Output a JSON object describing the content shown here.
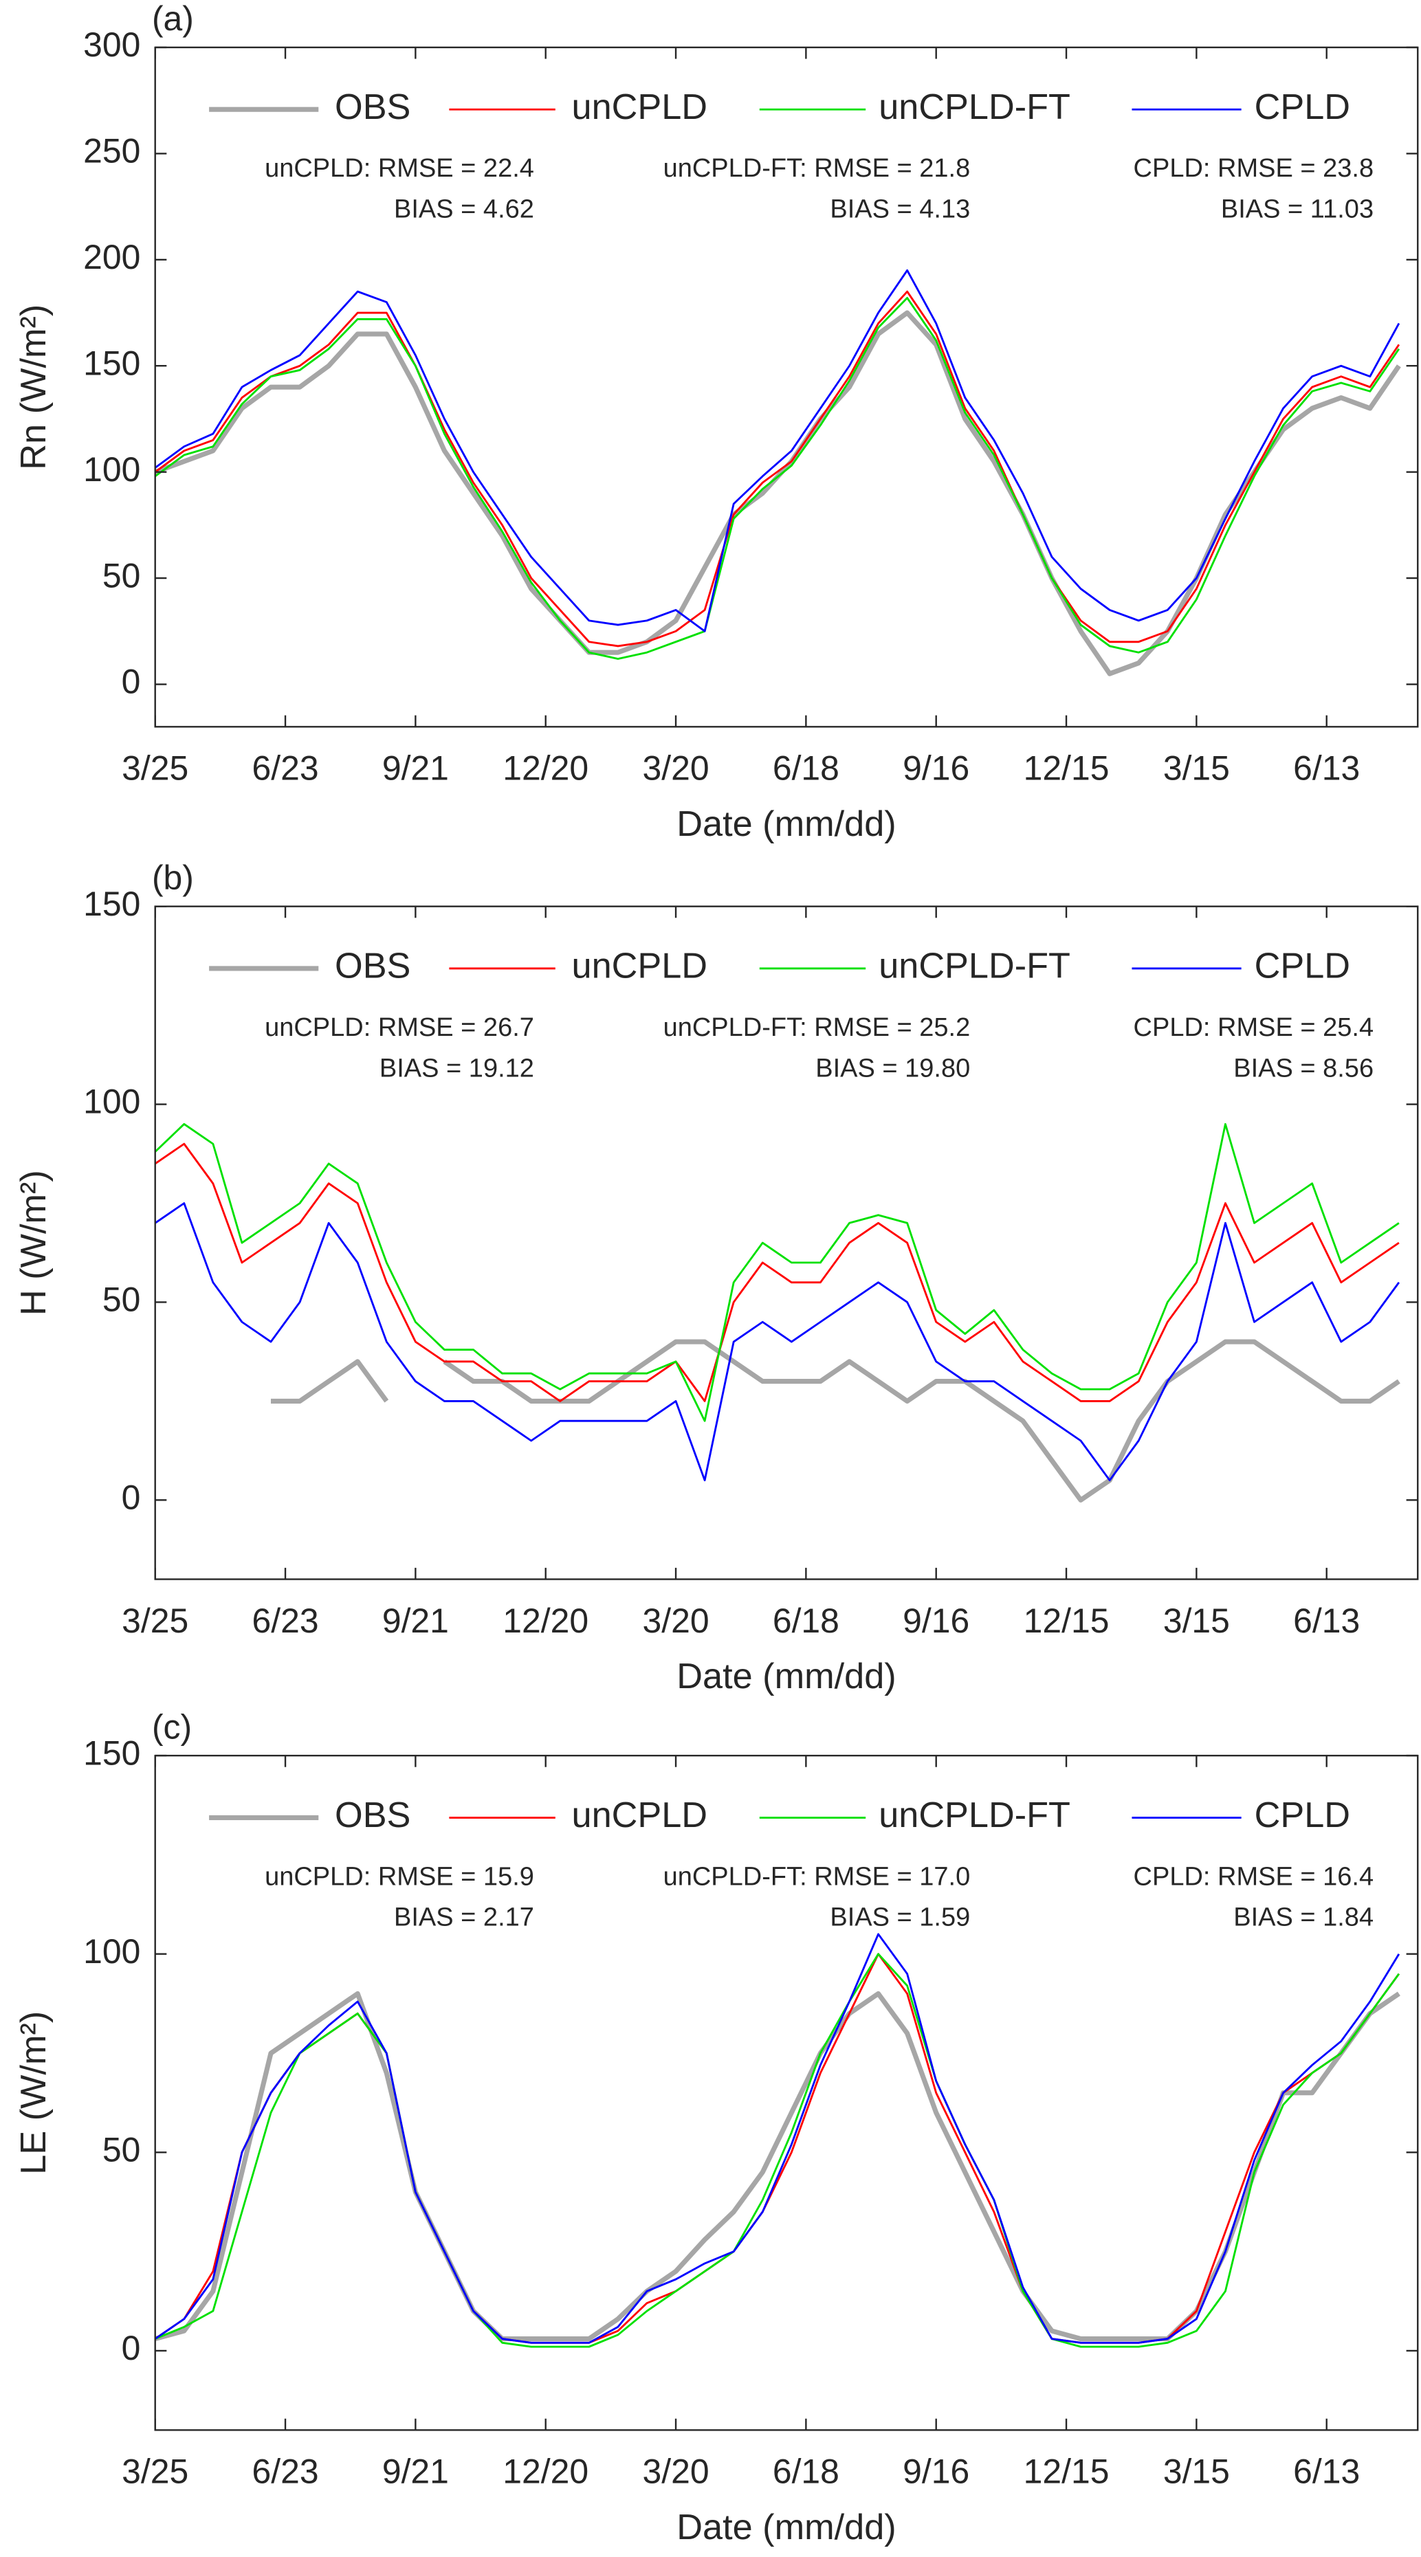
{
  "chart_data": [
    {
      "type": "line",
      "label": "(a)",
      "xlabel": "Date (mm/dd)",
      "ylabel": "Rn (W/m²)",
      "legend": "top",
      "x": [
        0,
        20,
        40,
        60,
        80,
        100,
        120,
        140,
        160,
        180,
        200,
        220,
        240,
        260,
        280,
        300,
        320,
        340,
        360,
        380,
        400,
        420,
        440,
        460,
        480,
        500,
        520,
        540,
        560,
        580,
        600,
        620,
        640,
        660,
        680,
        700,
        720,
        740,
        760,
        780,
        800,
        820,
        840,
        860
      ],
      "xlim": [
        0,
        873
      ],
      "ylim": [
        -20,
        300
      ],
      "xticks": [
        {
          "value": 0,
          "label": "3/25"
        },
        {
          "value": 90,
          "label": "6/23"
        },
        {
          "value": 180,
          "label": "9/21"
        },
        {
          "value": 270,
          "label": "12/20"
        },
        {
          "value": 360,
          "label": "3/20"
        },
        {
          "value": 450,
          "label": "6/18"
        },
        {
          "value": 540,
          "label": "9/16"
        },
        {
          "value": 630,
          "label": "12/15"
        },
        {
          "value": 720,
          "label": "3/15"
        },
        {
          "value": 810,
          "label": "6/13"
        }
      ],
      "yticks": [
        0,
        50,
        100,
        150,
        200,
        250,
        300
      ],
      "stats": [
        [
          "unCPLD: RMSE = 22.4",
          "BIAS = 4.62"
        ],
        [
          "unCPLD-FT: RMSE = 21.8",
          "BIAS = 4.13"
        ],
        [
          "CPLD: RMSE = 23.8",
          "BIAS = 11.03"
        ]
      ],
      "series": [
        {
          "name": "OBS",
          "color": "#a6a6a6",
          "width": 3,
          "values": [
            100,
            105,
            110,
            130,
            140,
            140,
            150,
            165,
            165,
            140,
            110,
            90,
            70,
            45,
            30,
            15,
            15,
            20,
            30,
            55,
            80,
            90,
            105,
            125,
            140,
            165,
            175,
            160,
            125,
            105,
            80,
            50,
            25,
            5,
            10,
            25,
            50,
            80,
            100,
            120,
            130,
            135,
            130,
            150
          ]
        },
        {
          "name": "unCPLD",
          "color": "#ff0000",
          "width": 1.2,
          "values": [
            100,
            110,
            115,
            135,
            145,
            150,
            160,
            175,
            175,
            150,
            120,
            95,
            75,
            50,
            35,
            20,
            18,
            20,
            25,
            35,
            80,
            95,
            105,
            125,
            145,
            170,
            185,
            165,
            130,
            110,
            80,
            50,
            30,
            20,
            20,
            25,
            45,
            75,
            100,
            125,
            140,
            145,
            140,
            160
          ]
        },
        {
          "name": "unCPLD-FT",
          "color": "#00e000",
          "width": 1.2,
          "values": [
            98,
            108,
            112,
            132,
            145,
            148,
            158,
            172,
            172,
            150,
            118,
            93,
            72,
            48,
            30,
            15,
            12,
            15,
            20,
            25,
            78,
            92,
            103,
            122,
            143,
            168,
            182,
            162,
            128,
            108,
            80,
            50,
            28,
            18,
            15,
            20,
            40,
            70,
            98,
            122,
            138,
            142,
            138,
            158
          ]
        },
        {
          "name": "CPLD",
          "color": "#0000ff",
          "width": 1.2,
          "values": [
            102,
            112,
            118,
            140,
            148,
            155,
            170,
            185,
            180,
            155,
            125,
            100,
            80,
            60,
            45,
            30,
            28,
            30,
            35,
            25,
            85,
            98,
            110,
            130,
            150,
            175,
            195,
            170,
            135,
            115,
            90,
            60,
            45,
            35,
            30,
            35,
            50,
            78,
            105,
            130,
            145,
            150,
            145,
            170
          ]
        }
      ]
    },
    {
      "type": "line",
      "label": "(b)",
      "xlabel": "Date (mm/dd)",
      "ylabel": "H (W/m²)",
      "legend": "top",
      "x": [
        0,
        20,
        40,
        60,
        80,
        100,
        120,
        140,
        160,
        180,
        200,
        220,
        240,
        260,
        280,
        300,
        320,
        340,
        360,
        380,
        400,
        420,
        440,
        460,
        480,
        500,
        520,
        540,
        560,
        580,
        600,
        620,
        640,
        660,
        680,
        700,
        720,
        740,
        760,
        780,
        800,
        820,
        840,
        860
      ],
      "xlim": [
        0,
        873
      ],
      "ylim": [
        -20,
        150
      ],
      "xticks": [
        {
          "value": 0,
          "label": "3/25"
        },
        {
          "value": 90,
          "label": "6/23"
        },
        {
          "value": 180,
          "label": "9/21"
        },
        {
          "value": 270,
          "label": "12/20"
        },
        {
          "value": 360,
          "label": "3/20"
        },
        {
          "value": 450,
          "label": "6/18"
        },
        {
          "value": 540,
          "label": "9/16"
        },
        {
          "value": 630,
          "label": "12/15"
        },
        {
          "value": 720,
          "label": "3/15"
        },
        {
          "value": 810,
          "label": "6/13"
        }
      ],
      "yticks": [
        0,
        50,
        100,
        150
      ],
      "stats": [
        [
          "unCPLD: RMSE = 26.7",
          "BIAS = 19.12"
        ],
        [
          "unCPLD-FT: RMSE = 25.2",
          "BIAS = 19.80"
        ],
        [
          "CPLD: RMSE = 25.4",
          "BIAS = 8.56"
        ]
      ],
      "series": [
        {
          "name": "OBS",
          "color": "#a6a6a6",
          "width": 3,
          "values": [
            null,
            null,
            null,
            null,
            25,
            25,
            30,
            35,
            25,
            null,
            35,
            30,
            30,
            25,
            25,
            25,
            30,
            35,
            40,
            40,
            35,
            30,
            30,
            30,
            35,
            30,
            25,
            30,
            30,
            25,
            20,
            10,
            0,
            5,
            20,
            30,
            35,
            40,
            40,
            35,
            30,
            25,
            25,
            30
          ]
        },
        {
          "name": "unCPLD",
          "color": "#ff0000",
          "width": 1.2,
          "values": [
            85,
            90,
            80,
            60,
            65,
            70,
            80,
            75,
            55,
            40,
            35,
            35,
            30,
            30,
            25,
            30,
            30,
            30,
            35,
            25,
            50,
            60,
            55,
            55,
            65,
            70,
            65,
            45,
            40,
            45,
            35,
            30,
            25,
            25,
            30,
            45,
            55,
            75,
            60,
            65,
            70,
            55,
            60,
            65
          ]
        },
        {
          "name": "unCPLD-FT",
          "color": "#00e000",
          "width": 1.2,
          "values": [
            88,
            95,
            90,
            65,
            70,
            75,
            85,
            80,
            60,
            45,
            38,
            38,
            32,
            32,
            28,
            32,
            32,
            32,
            35,
            20,
            55,
            65,
            60,
            60,
            70,
            72,
            70,
            48,
            42,
            48,
            38,
            32,
            28,
            28,
            32,
            50,
            60,
            95,
            70,
            75,
            80,
            60,
            65,
            70
          ]
        },
        {
          "name": "CPLD",
          "color": "#0000ff",
          "width": 1.2,
          "values": [
            70,
            75,
            55,
            45,
            40,
            50,
            70,
            60,
            40,
            30,
            25,
            25,
            20,
            15,
            20,
            20,
            20,
            20,
            25,
            5,
            40,
            45,
            40,
            45,
            50,
            55,
            50,
            35,
            30,
            30,
            25,
            20,
            15,
            5,
            15,
            30,
            40,
            70,
            45,
            50,
            55,
            40,
            45,
            55
          ]
        }
      ]
    },
    {
      "type": "line",
      "label": "(c)",
      "xlabel": "Date (mm/dd)",
      "ylabel": "LE (W/m²)",
      "legend": "top",
      "x": [
        0,
        20,
        40,
        60,
        80,
        100,
        120,
        140,
        160,
        180,
        200,
        220,
        240,
        260,
        280,
        300,
        320,
        340,
        360,
        380,
        400,
        420,
        440,
        460,
        480,
        500,
        520,
        540,
        560,
        580,
        600,
        620,
        640,
        660,
        680,
        700,
        720,
        740,
        760,
        780,
        800,
        820,
        840,
        860
      ],
      "xlim": [
        0,
        873
      ],
      "ylim": [
        -20,
        150
      ],
      "xticks": [
        {
          "value": 0,
          "label": "3/25"
        },
        {
          "value": 90,
          "label": "6/23"
        },
        {
          "value": 180,
          "label": "9/21"
        },
        {
          "value": 270,
          "label": "12/20"
        },
        {
          "value": 360,
          "label": "3/20"
        },
        {
          "value": 450,
          "label": "6/18"
        },
        {
          "value": 540,
          "label": "9/16"
        },
        {
          "value": 630,
          "label": "12/15"
        },
        {
          "value": 720,
          "label": "3/15"
        },
        {
          "value": 810,
          "label": "6/13"
        }
      ],
      "yticks": [
        0,
        50,
        100,
        150
      ],
      "stats": [
        [
          "unCPLD: RMSE = 15.9",
          "BIAS = 2.17"
        ],
        [
          "unCPLD-FT: RMSE = 17.0",
          "BIAS = 1.59"
        ],
        [
          "CPLD: RMSE = 16.4",
          "BIAS = 1.84"
        ]
      ],
      "series": [
        {
          "name": "OBS",
          "color": "#a6a6a6",
          "width": 3,
          "values": [
            3,
            5,
            15,
            45,
            75,
            80,
            85,
            90,
            70,
            40,
            25,
            10,
            3,
            3,
            3,
            3,
            8,
            15,
            20,
            28,
            35,
            45,
            60,
            75,
            85,
            90,
            80,
            60,
            45,
            30,
            15,
            5,
            3,
            3,
            3,
            3,
            10,
            25,
            45,
            65,
            65,
            75,
            85,
            90
          ]
        },
        {
          "name": "unCPLD",
          "color": "#ff0000",
          "width": 1.2,
          "values": [
            3,
            8,
            20,
            50,
            65,
            75,
            80,
            85,
            75,
            40,
            25,
            10,
            3,
            2,
            2,
            2,
            5,
            12,
            15,
            20,
            25,
            35,
            50,
            70,
            85,
            100,
            90,
            65,
            50,
            35,
            15,
            3,
            2,
            2,
            2,
            3,
            10,
            30,
            50,
            65,
            70,
            75,
            85,
            95
          ]
        },
        {
          "name": "unCPLD-FT",
          "color": "#00e000",
          "width": 1.2,
          "values": [
            3,
            6,
            10,
            35,
            60,
            75,
            80,
            85,
            75,
            40,
            25,
            10,
            2,
            1,
            1,
            1,
            4,
            10,
            15,
            20,
            25,
            38,
            55,
            75,
            88,
            100,
            92,
            68,
            52,
            38,
            15,
            3,
            1,
            1,
            1,
            2,
            5,
            15,
            45,
            62,
            70,
            75,
            85,
            95
          ]
        },
        {
          "name": "CPLD",
          "color": "#0000ff",
          "width": 1.2,
          "values": [
            3,
            8,
            18,
            50,
            65,
            75,
            82,
            88,
            75,
            40,
            25,
            10,
            3,
            2,
            2,
            2,
            6,
            15,
            18,
            22,
            25,
            35,
            52,
            72,
            88,
            105,
            95,
            68,
            52,
            38,
            16,
            3,
            2,
            2,
            2,
            3,
            8,
            25,
            48,
            65,
            72,
            78,
            88,
            100
          ]
        }
      ]
    }
  ]
}
